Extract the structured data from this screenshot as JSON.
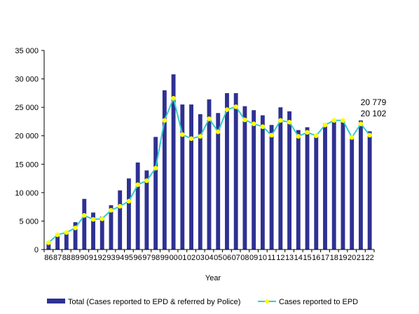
{
  "chart_data": {
    "type": "bar",
    "xlabel": "Year",
    "ylabel": "",
    "ylim": [
      0,
      35000
    ],
    "yticks": [
      "0",
      "5 000",
      "10 000",
      "15 000",
      "20 000",
      "25 000",
      "30 000",
      "35 000"
    ],
    "ytick_values": [
      0,
      5000,
      10000,
      15000,
      20000,
      25000,
      30000,
      35000
    ],
    "categories": [
      "86",
      "87",
      "88",
      "89",
      "90",
      "91",
      "92",
      "93",
      "94",
      "95",
      "96",
      "97",
      "98",
      "99",
      "00",
      "01",
      "02",
      "03",
      "04",
      "05",
      "06",
      "07",
      "08",
      "09",
      "10",
      "11",
      "12",
      "13",
      "14",
      "15",
      "16",
      "17",
      "18",
      "19",
      "20",
      "21",
      "22"
    ],
    "series": [
      {
        "name": "Total (Cases reported to EPD & referred by Police)",
        "kind": "bar",
        "color": "#2e3192",
        "values": [
          1300,
          2600,
          3000,
          4800,
          8900,
          6500,
          5800,
          7800,
          10400,
          12500,
          15300,
          13900,
          19800,
          28000,
          30800,
          25500,
          25500,
          23800,
          26400,
          24000,
          27500,
          27500,
          25200,
          24500,
          23600,
          21900,
          25000,
          24300,
          21000,
          21500,
          20100,
          22200,
          22900,
          22900,
          19500,
          22700,
          20779
        ]
      },
      {
        "name": "Cases reported to EPD",
        "kind": "line",
        "color": "#33cccc",
        "marker_color": "#ffff00",
        "values": [
          1200,
          2600,
          3000,
          3800,
          6000,
          5300,
          5400,
          6900,
          7600,
          8500,
          11400,
          12100,
          14300,
          22700,
          26600,
          20200,
          19500,
          19900,
          23000,
          20700,
          24600,
          25100,
          22800,
          22100,
          21600,
          20100,
          22700,
          22400,
          19900,
          20600,
          20000,
          21900,
          22700,
          22700,
          19700,
          22100,
          20102
        ]
      }
    ],
    "annotations": [
      "20 779",
      "20 102"
    ],
    "grid": false,
    "legend_position": "bottom"
  }
}
